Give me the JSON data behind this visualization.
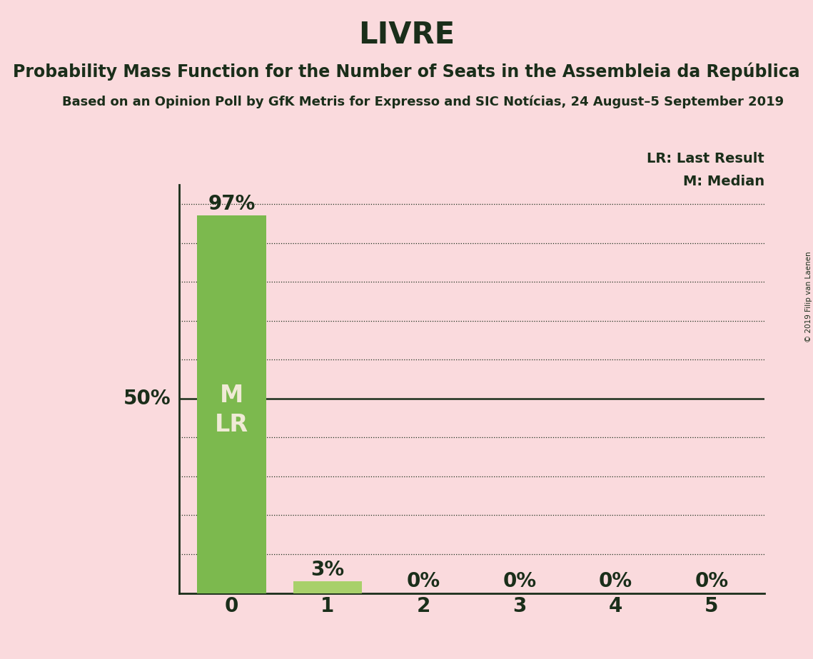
{
  "title": "LIVRE",
  "subtitle1": "Probability Mass Function for the Number of Seats in the Assembleia da República",
  "subtitle2": "Based on an Opinion Poll by GfK Metris for Expresso and SIC Notícias, 24 August–5 September 2019",
  "copyright": "© 2019 Filip van Laenen",
  "categories": [
    0,
    1,
    2,
    3,
    4,
    5
  ],
  "values": [
    0.97,
    0.03,
    0.0,
    0.0,
    0.0,
    0.0
  ],
  "bar_color_0": "#7cb94e",
  "bar_color_rest": "#a8d06a",
  "background_color": "#fadadd",
  "text_color": "#1a2e1a",
  "label_color_inside": "#f0ead6",
  "median": 0,
  "last_result": 0,
  "ylim": [
    0,
    1.05
  ],
  "grid_ticks": [
    0.1,
    0.2,
    0.3,
    0.4,
    0.5,
    0.6,
    0.7,
    0.8,
    0.9,
    1.0
  ],
  "fifty_pct_line": 0.5,
  "legend_lr": "LR: Last Result",
  "legend_m": "M: Median",
  "title_fontsize": 30,
  "subtitle1_fontsize": 17,
  "subtitle2_fontsize": 13,
  "bar_label_fontsize": 20,
  "axis_tick_fontsize": 20,
  "ytick_label_50_fontsize": 20,
  "bar_width": 0.72
}
